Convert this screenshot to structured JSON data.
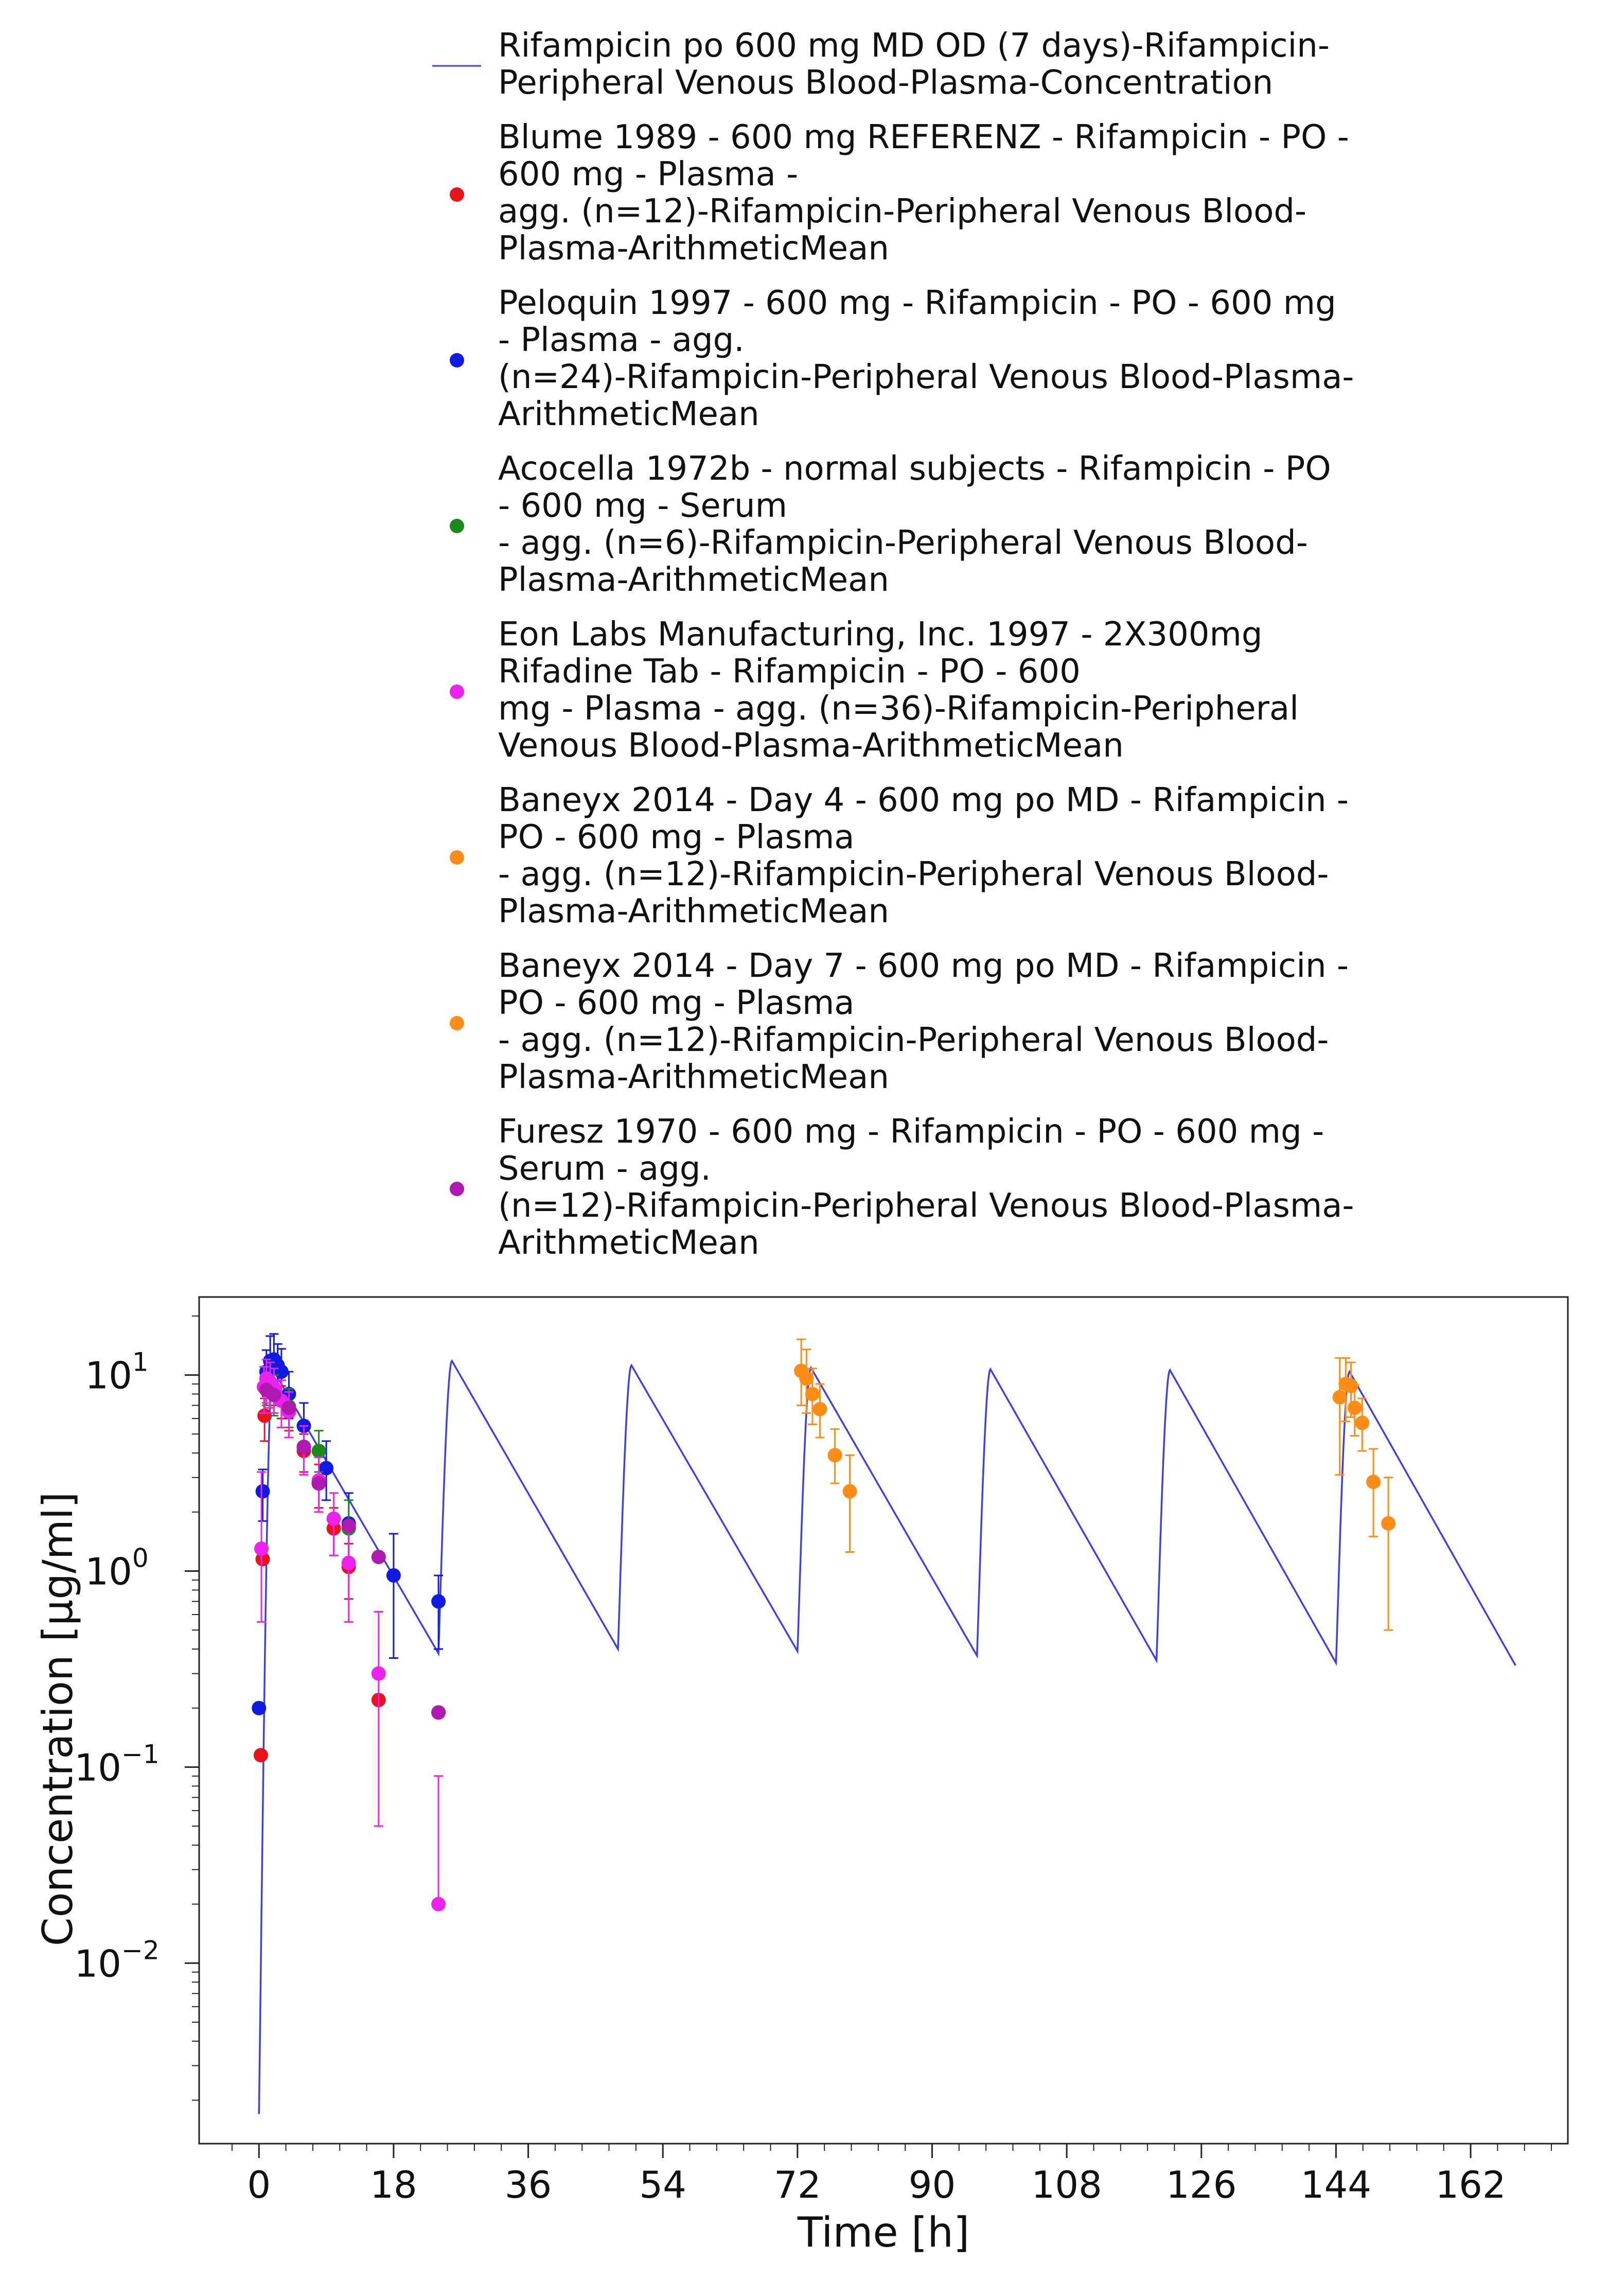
{
  "chart_data": {
    "type": "scatter",
    "xlabel": "Time [h]",
    "ylabel": "Concentration [µg/ml]",
    "xlim": [
      -8,
      175
    ],
    "ylim": [
      0.0012,
      25
    ],
    "y_scale": "log",
    "x_ticks": [
      0,
      18,
      36,
      54,
      72,
      90,
      108,
      126,
      144,
      162
    ],
    "x_tick_labels": [
      "0",
      "18",
      "36",
      "54",
      "72",
      "90",
      "108",
      "126",
      "144",
      "162"
    ],
    "y_ticks": [
      {
        "value": 10,
        "base": "10",
        "exp": "1"
      },
      {
        "value": 1,
        "base": "10",
        "exp": "0"
      },
      {
        "value": 0.1,
        "base": "10",
        "exp": "−1"
      },
      {
        "value": 0.01,
        "base": "10",
        "exp": "−2"
      }
    ],
    "grid": false,
    "legend_position": "top",
    "simulation": {
      "name": "Rifampicin po 600 mg MD OD (7 days)-Rifampicin-Peripheral Venous Blood-Plasma-Concentration",
      "legend_lines": [
        "Rifampicin po 600 mg MD OD (7 days)-Rifampicin-",
        "Peripheral Venous Blood-Plasma-Concentration"
      ],
      "color": "#3f3fe6",
      "t0": 0.0017,
      "doses": [
        {
          "t": 0,
          "cmax": 10.8,
          "ctrough": 0.38
        },
        {
          "t": 24,
          "cmax": 11.8,
          "ctrough": 0.4
        },
        {
          "t": 48,
          "cmax": 11.2,
          "ctrough": 0.39
        },
        {
          "t": 72,
          "cmax": 10.9,
          "ctrough": 0.37
        },
        {
          "t": 96,
          "cmax": 10.7,
          "ctrough": 0.35
        },
        {
          "t": 120,
          "cmax": 10.6,
          "ctrough": 0.34
        },
        {
          "t": 144,
          "cmax": 10.4,
          "ctrough": 0.33
        }
      ],
      "tmax_after_dose": 1.8
    },
    "series": [
      {
        "name": "Blume 1989 - 600 mg REFERENZ - Rifampicin - PO - 600 mg - Plasma - agg. (n=12)-Rifampicin-Peripheral Venous Blood-Plasma-ArithmeticMean",
        "legend_lines": [
          "Blume 1989 - 600 mg REFERENZ - Rifampicin - PO -",
          "600 mg - Plasma -",
          "agg. (n=12)-Rifampicin-Peripheral Venous Blood-",
          "Plasma-ArithmeticMean"
        ],
        "color": "#e8141c",
        "points": [
          {
            "x": 0.25,
            "y": 0.115
          },
          {
            "x": 0.5,
            "y": 1.15
          },
          {
            "x": 0.75,
            "y": 6.2,
            "err_lo": 4.6,
            "err_hi": 7.6
          },
          {
            "x": 1.5,
            "y": 9.2,
            "err_lo": 7.6,
            "err_hi": 10.8
          },
          {
            "x": 2,
            "y": 8.6,
            "err_lo": 7.0,
            "err_hi": 10.2
          },
          {
            "x": 3,
            "y": 7.4,
            "err_lo": 6.0,
            "err_hi": 8.8
          },
          {
            "x": 4,
            "y": 6.5,
            "err_lo": 5.2,
            "err_hi": 7.8
          },
          {
            "x": 6,
            "y": 4.1,
            "err_lo": 3.2,
            "err_hi": 5.0
          },
          {
            "x": 8,
            "y": 2.8,
            "err_lo": 2.1,
            "err_hi": 3.5
          },
          {
            "x": 10,
            "y": 1.65,
            "err_lo": 1.2,
            "err_hi": 2.1
          },
          {
            "x": 12,
            "y": 1.05,
            "err_lo": 0.72,
            "err_hi": 1.38
          },
          {
            "x": 16,
            "y": 0.22
          },
          {
            "x": 24,
            "y": 0.19
          }
        ]
      },
      {
        "name": "Peloquin 1997 - 600 mg - Rifampicin - PO - 600 mg - Plasma - agg. (n=24)-Rifampicin-Peripheral Venous Blood-Plasma-ArithmeticMean",
        "legend_lines": [
          "Peloquin 1997 - 600 mg - Rifampicin - PO - 600 mg",
          "- Plasma - agg.",
          "(n=24)-Rifampicin-Peripheral Venous Blood-Plasma-",
          "ArithmeticMean"
        ],
        "color": "#0f1be0",
        "points": [
          {
            "x": 0.0,
            "y": 0.2
          },
          {
            "x": 0.5,
            "y": 2.55,
            "err_lo": 1.8,
            "err_hi": 3.3
          },
          {
            "x": 1.0,
            "y": 10.4,
            "err_lo": 7.8,
            "err_hi": 13.4
          },
          {
            "x": 1.5,
            "y": 11.8,
            "err_lo": 8.6,
            "err_hi": 15.8
          },
          {
            "x": 2.0,
            "y": 12.0,
            "err_lo": 8.8,
            "err_hi": 16.2
          },
          {
            "x": 2.5,
            "y": 11.2,
            "err_lo": 8.4,
            "err_hi": 14.4
          },
          {
            "x": 3.0,
            "y": 10.4,
            "err_lo": 7.8,
            "err_hi": 13.6
          },
          {
            "x": 4.0,
            "y": 8.0,
            "err_lo": 6.0,
            "err_hi": 10.4
          },
          {
            "x": 6.0,
            "y": 5.5,
            "err_lo": 4.0,
            "err_hi": 7.2
          },
          {
            "x": 9.0,
            "y": 3.35,
            "err_lo": 2.3,
            "err_hi": 4.6
          },
          {
            "x": 12.0,
            "y": 1.75,
            "err_lo": 1.1,
            "err_hi": 2.5
          },
          {
            "x": 18.0,
            "y": 0.95,
            "err_lo": 0.36,
            "err_hi": 1.55
          },
          {
            "x": 24.0,
            "y": 0.7,
            "err_lo": 0.4,
            "err_hi": 0.95
          }
        ]
      },
      {
        "name": "Acocella 1972b - normal subjects - Rifampicin - PO - 600 mg - Serum - agg. (n=6)-Rifampicin-Peripheral Venous Blood-Plasma-ArithmeticMean",
        "legend_lines": [
          "Acocella 1972b - normal subjects - Rifampicin - PO",
          "- 600 mg - Serum",
          "- agg. (n=6)-Rifampicin-Peripheral Venous Blood-",
          "Plasma-ArithmeticMean"
        ],
        "color": "#1a8a1a",
        "points": [
          {
            "x": 1.0,
            "y": 9.0,
            "err_lo": 7.0,
            "err_hi": 11.0
          },
          {
            "x": 2.0,
            "y": 8.1,
            "err_lo": 6.2,
            "err_hi": 10.0
          },
          {
            "x": 4.0,
            "y": 6.9,
            "err_lo": 5.4,
            "err_hi": 8.5
          },
          {
            "x": 8.0,
            "y": 4.1,
            "err_lo": 3.2,
            "err_hi": 5.2
          },
          {
            "x": 12.0,
            "y": 1.65,
            "err_lo": 1.05,
            "err_hi": 2.3
          }
        ]
      },
      {
        "name": "Eon Labs Manufacturing, Inc. 1997 - 2X300mg Rifadine Tab - Rifampicin - PO - 600 mg - Plasma - agg. (n=36)-Rifampicin-Peripheral Venous Blood-Plasma-ArithmeticMean",
        "legend_lines": [
          "Eon Labs Manufacturing, Inc. 1997 - 2X300mg",
          "Rifadine Tab - Rifampicin - PO - 600",
          "mg - Plasma - agg. (n=36)-Rifampicin-Peripheral",
          "Venous Blood-Plasma-ArithmeticMean"
        ],
        "color": "#ee22ee",
        "points": [
          {
            "x": 0.33,
            "y": 1.3,
            "err_lo": 0.55,
            "err_hi": 3.2
          },
          {
            "x": 0.67,
            "y": 8.7,
            "err_lo": 6.4,
            "err_hi": 11.0
          },
          {
            "x": 1.0,
            "y": 9.6,
            "err_lo": 7.2,
            "err_hi": 12.0
          },
          {
            "x": 1.5,
            "y": 9.2,
            "err_lo": 6.8,
            "err_hi": 11.6
          },
          {
            "x": 2.0,
            "y": 8.6,
            "err_lo": 6.4,
            "err_hi": 10.8
          },
          {
            "x": 3.0,
            "y": 7.4,
            "err_lo": 5.4,
            "err_hi": 9.4
          },
          {
            "x": 4.0,
            "y": 6.5,
            "err_lo": 4.8,
            "err_hi": 8.2
          },
          {
            "x": 6.0,
            "y": 4.3,
            "err_lo": 3.1,
            "err_hi": 5.5
          },
          {
            "x": 8.0,
            "y": 2.9,
            "err_lo": 2.0,
            "err_hi": 3.8
          },
          {
            "x": 10.0,
            "y": 1.85,
            "err_lo": 1.2,
            "err_hi": 2.5
          },
          {
            "x": 12.0,
            "y": 1.1,
            "err_lo": 0.55,
            "err_hi": 1.6
          },
          {
            "x": 16.0,
            "y": 0.3,
            "err_lo": 0.05,
            "err_hi": 0.62
          },
          {
            "x": 24.0,
            "y": 0.02,
            "err_lo": 0.02,
            "err_hi": 0.09
          }
        ]
      },
      {
        "name": "Baneyx 2014 - Day 4 - 600 mg po MD - Rifampicin - PO - 600 mg - Plasma - agg. (n=12)-Rifampicin-Peripheral Venous Blood-Plasma-ArithmeticMean",
        "legend_lines": [
          "Baneyx 2014 - Day 4 - 600 mg po MD - Rifampicin -",
          "PO - 600 mg - Plasma",
          "- agg. (n=12)-Rifampicin-Peripheral Venous Blood-",
          "Plasma-ArithmeticMean"
        ],
        "color": "#ff8c14",
        "points": [
          {
            "x": 72.5,
            "y": 10.5,
            "err_lo": 7.0,
            "err_hi": 15.2
          },
          {
            "x": 73.2,
            "y": 9.6,
            "err_lo": 6.4,
            "err_hi": 13.5
          },
          {
            "x": 74.0,
            "y": 8.0,
            "err_lo": 5.6,
            "err_hi": 10.8
          },
          {
            "x": 75.0,
            "y": 6.7,
            "err_lo": 4.8,
            "err_hi": 9.0
          },
          {
            "x": 77.0,
            "y": 3.9,
            "err_lo": 2.8,
            "err_hi": 5.3
          },
          {
            "x": 79.0,
            "y": 2.55,
            "err_lo": 1.25,
            "err_hi": 3.9
          }
        ]
      },
      {
        "name": "Baneyx 2014 - Day 7 - 600 mg po MD - Rifampicin - PO - 600 mg - Plasma - agg. (n=12)-Rifampicin-Peripheral Venous Blood-Plasma-ArithmeticMean",
        "legend_lines": [
          "Baneyx 2014 - Day 7 - 600 mg po MD - Rifampicin -",
          "PO - 600 mg - Plasma",
          "- agg. (n=12)-Rifampicin-Peripheral Venous Blood-",
          "Plasma-ArithmeticMean"
        ],
        "color": "#ff8c14",
        "points": [
          {
            "x": 144.5,
            "y": 7.7,
            "err_lo": 3.1,
            "err_hi": 12.2
          },
          {
            "x": 145.3,
            "y": 9.0,
            "err_lo": 5.8,
            "err_hi": 12.2
          },
          {
            "x": 146.0,
            "y": 8.8,
            "err_lo": 6.1,
            "err_hi": 11.6
          },
          {
            "x": 146.5,
            "y": 6.8,
            "err_lo": 4.9,
            "err_hi": 8.9
          },
          {
            "x": 147.5,
            "y": 5.7,
            "err_lo": 4.1,
            "err_hi": 7.6
          },
          {
            "x": 149.0,
            "y": 2.85,
            "err_lo": 1.5,
            "err_hi": 4.2
          },
          {
            "x": 151.0,
            "y": 1.75,
            "err_lo": 0.5,
            "err_hi": 3.0
          }
        ]
      },
      {
        "name": "Furesz 1970 - 600 mg - Rifampicin - PO - 600 mg - Serum - agg. (n=12)-Rifampicin-Peripheral Venous Blood-Plasma-ArithmeticMean",
        "legend_lines": [
          "Furesz 1970 - 600 mg - Rifampicin - PO - 600 mg -",
          "Serum - agg.",
          "(n=12)-Rifampicin-Peripheral Venous Blood-Plasma-",
          "ArithmeticMean"
        ],
        "color": "#b019b0",
        "points": [
          {
            "x": 1.0,
            "y": 8.4
          },
          {
            "x": 2.0,
            "y": 7.9
          },
          {
            "x": 4.0,
            "y": 6.8
          },
          {
            "x": 6.0,
            "y": 4.3
          },
          {
            "x": 8.0,
            "y": 2.8
          },
          {
            "x": 12.0,
            "y": 1.7
          },
          {
            "x": 16.0,
            "y": 1.18
          },
          {
            "x": 24.0,
            "y": 0.19
          }
        ]
      }
    ]
  }
}
